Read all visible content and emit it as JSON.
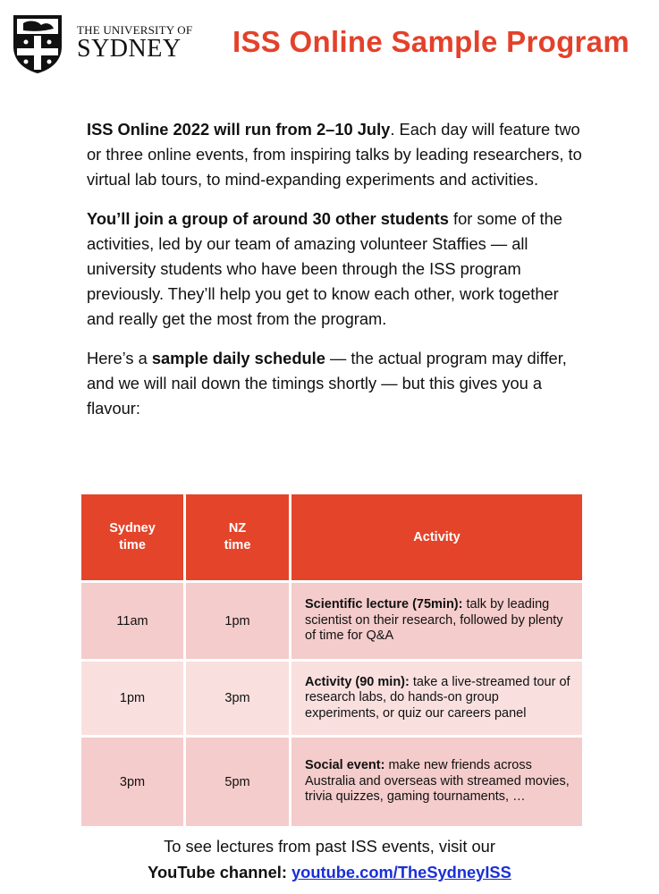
{
  "header": {
    "logo_line1": "THE UNIVERSITY OF",
    "logo_line2": "SYDNEY",
    "title": "ISS Online Sample Program",
    "title_color": "#e4412a"
  },
  "intro": {
    "p1_bold": "ISS Online 2022 will run from 2–10 July",
    "p1_rest": ". Each day will feature two or three online events, from inspiring talks by leading researchers, to virtual lab tours, to mind-expanding experiments and activities.",
    "p2_bold": "You’ll join a group of around 30 other students",
    "p2_rest": " for some of the activities, led by our team of amazing volunteer Staffies — all university students who have been through the ISS program previously. They’ll help you get to know each other, work together and really get the most from the program.",
    "p3_pre": "Here’s a ",
    "p3_bold": "sample daily schedule",
    "p3_rest": " — the actual program may differ, and we will nail down the timings shortly — but this gives you a flavour:"
  },
  "table": {
    "headers": [
      "Sydney time",
      "NZ time",
      "Activity"
    ],
    "header_color": "#e4442a",
    "rows": [
      {
        "sydney": "11am",
        "nz": "1pm",
        "title": "Scientific lecture (75min):",
        "desc": " talk by leading scientist on their research, followed by plenty of time for Q&A"
      },
      {
        "sydney": "1pm",
        "nz": "3pm",
        "title": "Activity (90 min):",
        "desc": " take a live-streamed tour of research labs, do hands-on group experiments, or quiz our careers panel"
      },
      {
        "sydney": "3pm",
        "nz": "5pm",
        "title": "Social event:",
        "desc": " make new friends across Australia and overseas with streamed movies, trivia quizzes, gaming tournaments, …"
      }
    ]
  },
  "footer": {
    "line1": "To see lectures from past ISS events, visit our",
    "label": "YouTube channel: ",
    "link": "youtube.com/TheSydneyISS"
  }
}
